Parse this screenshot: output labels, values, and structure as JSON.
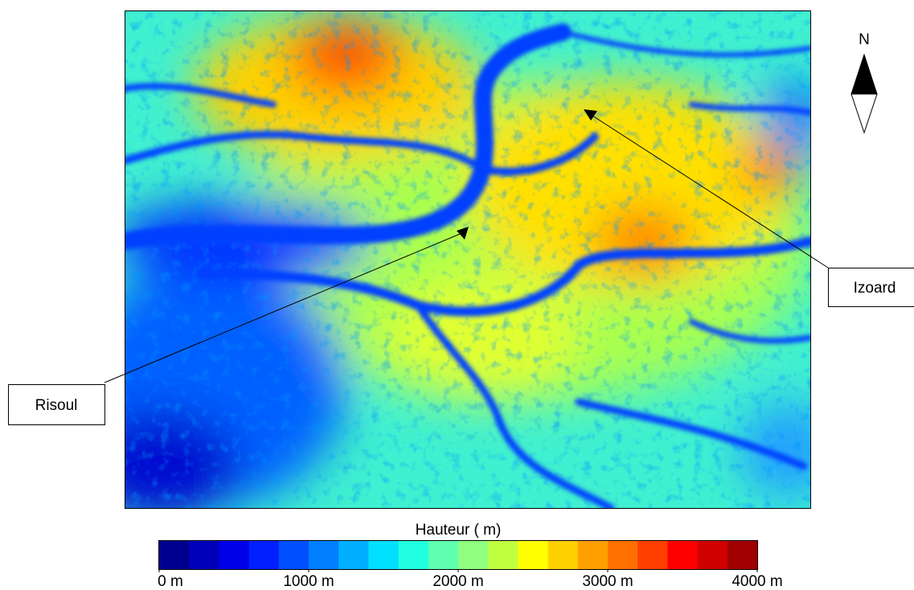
{
  "map": {
    "north": "N",
    "places": [
      {
        "label": "Risoul"
      },
      {
        "label": "Izoard"
      }
    ]
  },
  "legend": {
    "title": "Hauteur ( m)",
    "range": [
      0,
      4000
    ],
    "ticks": [
      {
        "value": 0,
        "label": "0 m"
      },
      {
        "value": 1000,
        "label": "1000 m"
      },
      {
        "value": 2000,
        "label": "2000 m"
      },
      {
        "value": 3000,
        "label": "3000 m"
      },
      {
        "value": 4000,
        "label": "4000 m"
      }
    ],
    "colors": [
      "#00008f",
      "#0000b8",
      "#0000e8",
      "#0020ff",
      "#0050ff",
      "#0080ff",
      "#00b0ff",
      "#00e0ff",
      "#20ffe0",
      "#60ffb0",
      "#90ff80",
      "#c0ff40",
      "#ffff00",
      "#ffd000",
      "#ffa000",
      "#ff7000",
      "#ff4000",
      "#ff0000",
      "#d00000",
      "#a00000"
    ]
  }
}
